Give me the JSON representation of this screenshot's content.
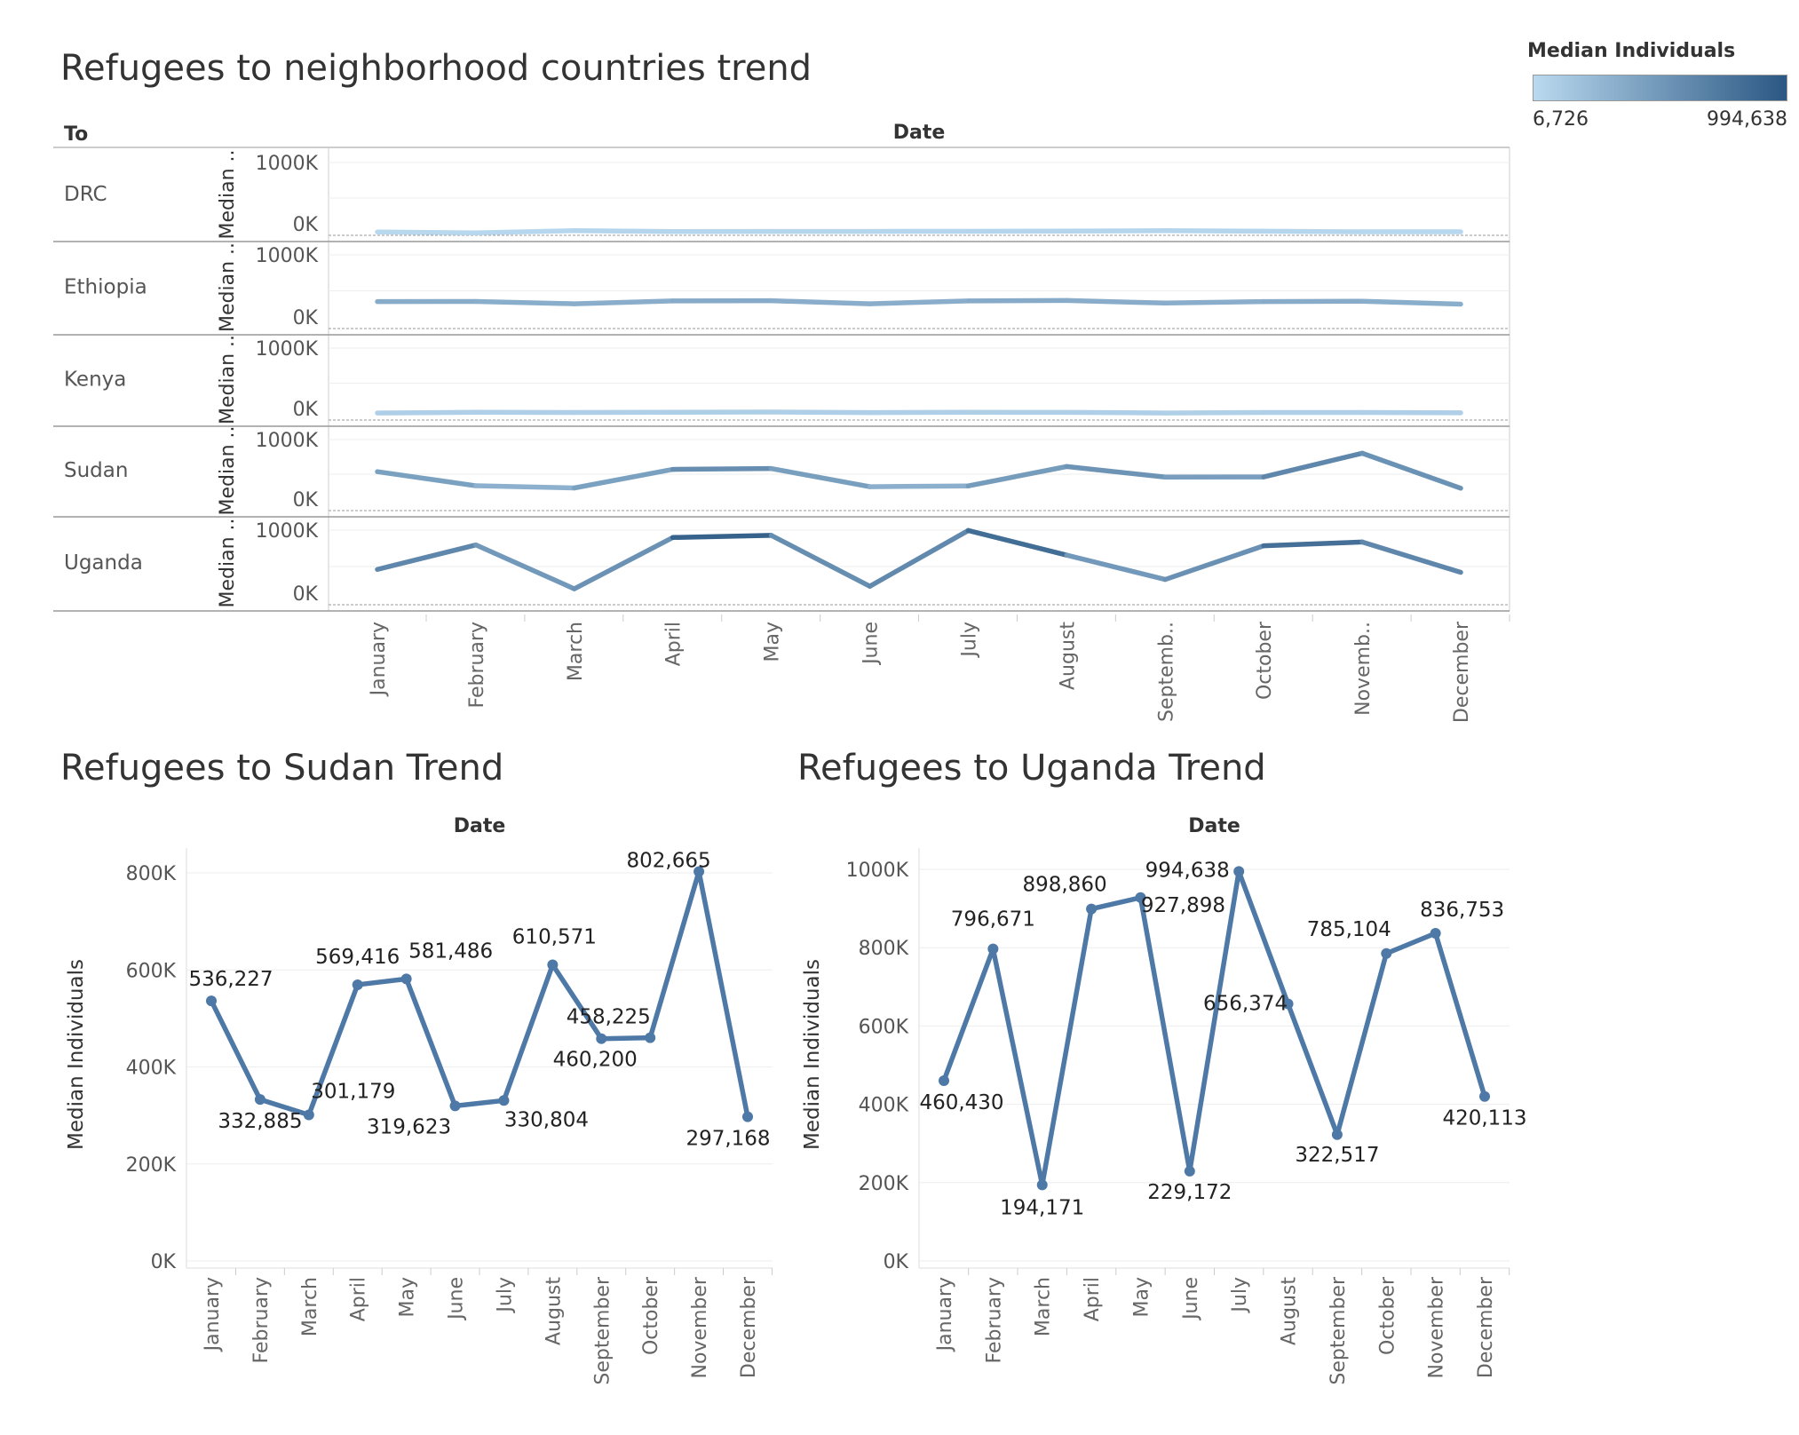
{
  "months": [
    "January",
    "February",
    "March",
    "April",
    "May",
    "June",
    "July",
    "August",
    "September",
    "October",
    "November",
    "December"
  ],
  "top_chart": {
    "title": "Refugees to neighborhood countries trend",
    "row_header": "To",
    "col_header": "Date",
    "y_axis_label": "Median ..",
    "y_ticks": [
      "1000K",
      "0K"
    ],
    "x_tick_labels": [
      "January",
      "February",
      "March",
      "April",
      "May",
      "June",
      "July",
      "August",
      "Septemb..",
      "October",
      "Novemb..",
      "December"
    ],
    "legend": {
      "title": "Median Individuals",
      "min_label": "6,726",
      "max_label": "994,638",
      "min": 6726,
      "max": 994638,
      "color_low": "#b9d9ef",
      "color_high": "#2a5783"
    }
  },
  "sudan_chart": {
    "title": "Refugees to Sudan Trend",
    "col_header": "Date",
    "ylabel": "Median Individuals",
    "y_ticks": [
      "0K",
      "200K",
      "400K",
      "600K",
      "800K"
    ],
    "data_labels": [
      "536,227",
      "332,885",
      "301,179",
      "569,416",
      "581,486",
      "319,623",
      "330,804",
      "610,571",
      "458,225",
      "460,200",
      "802,665",
      "297,168"
    ]
  },
  "uganda_chart": {
    "title": "Refugees to Uganda Trend",
    "col_header": "Date",
    "ylabel": "Median Individuals",
    "y_ticks": [
      "0K",
      "200K",
      "400K",
      "600K",
      "800K",
      "1000K"
    ],
    "data_labels": [
      "460,430",
      "796,671",
      "194,171",
      "898,860",
      "927,898",
      "229,172",
      "994,638",
      "656,374",
      "322,517",
      "785,104",
      "836,753",
      "420,113"
    ]
  },
  "chart_data": [
    {
      "type": "line",
      "title": "Refugees to neighborhood countries trend",
      "xlabel": "Date",
      "ylabel": "Median ..",
      "x": [
        "January",
        "February",
        "March",
        "April",
        "May",
        "June",
        "July",
        "August",
        "September",
        "October",
        "November",
        "December"
      ],
      "ylim": [
        0,
        1000000
      ],
      "grid": true,
      "legend": "top-right",
      "series": [
        {
          "name": "DRC",
          "values": [
            22000,
            10000,
            40000,
            28000,
            30000,
            30000,
            32000,
            35000,
            40000,
            33000,
            25000,
            25000
          ]
        },
        {
          "name": "Ethiopia",
          "values": [
            350000,
            352000,
            320000,
            360000,
            362000,
            320000,
            360000,
            365000,
            330000,
            350000,
            355000,
            315000
          ]
        },
        {
          "name": "Kenya",
          "values": [
            75000,
            85000,
            82000,
            85000,
            88000,
            80000,
            85000,
            84000,
            75000,
            82000,
            82000,
            78000
          ]
        },
        {
          "name": "Sudan",
          "values": [
            536227,
            332885,
            301179,
            569416,
            581486,
            319623,
            330804,
            610571,
            458225,
            460200,
            802665,
            297168
          ]
        },
        {
          "name": "Uganda",
          "values": [
            460430,
            796671,
            194171,
            898860,
            927898,
            229172,
            994638,
            656374,
            322517,
            785104,
            836753,
            420113
          ]
        }
      ]
    },
    {
      "type": "line",
      "title": "Refugees to Sudan Trend",
      "xlabel": "Date",
      "ylabel": "Median Individuals",
      "x": [
        "January",
        "February",
        "March",
        "April",
        "May",
        "June",
        "July",
        "August",
        "September",
        "October",
        "November",
        "December"
      ],
      "ylim": [
        0,
        850000
      ],
      "grid": true,
      "series": [
        {
          "values": [
            536227,
            332885,
            301179,
            569416,
            581486,
            319623,
            330804,
            610571,
            458225,
            460200,
            802665,
            297168
          ]
        }
      ]
    },
    {
      "type": "line",
      "title": "Refugees to Uganda Trend",
      "xlabel": "Date",
      "ylabel": "Median Individuals",
      "x": [
        "January",
        "February",
        "March",
        "April",
        "May",
        "June",
        "July",
        "August",
        "September",
        "October",
        "November",
        "December"
      ],
      "ylim": [
        0,
        1050000
      ],
      "grid": true,
      "series": [
        {
          "values": [
            460430,
            796671,
            194171,
            898860,
            927898,
            229172,
            994638,
            656374,
            322517,
            785104,
            836753,
            420113
          ]
        }
      ]
    }
  ]
}
